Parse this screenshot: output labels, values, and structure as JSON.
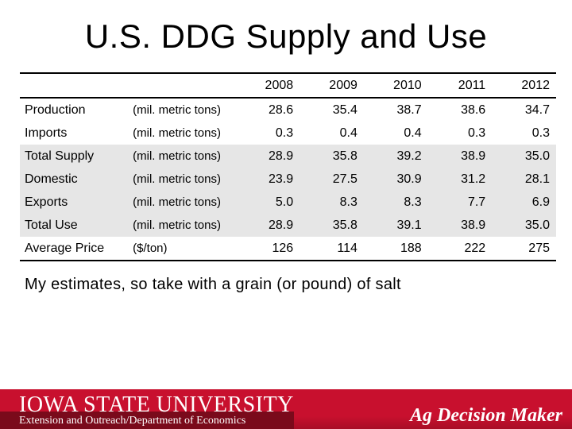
{
  "title": "U.S. DDG Supply and Use",
  "table": {
    "years": [
      "2008",
      "2009",
      "2010",
      "2011",
      "2012"
    ],
    "rows": [
      {
        "label": "Production",
        "unit": "(mil. metric tons)",
        "values": [
          "28.6",
          "35.4",
          "38.7",
          "38.6",
          "34.7"
        ]
      },
      {
        "label": "Imports",
        "unit": "(mil. metric tons)",
        "values": [
          "0.3",
          "0.4",
          "0.4",
          "0.3",
          "0.3"
        ]
      },
      {
        "label": "Total Supply",
        "unit": "(mil. metric tons)",
        "values": [
          "28.9",
          "35.8",
          "39.2",
          "38.9",
          "35.0"
        ]
      },
      {
        "label": "Domestic",
        "unit": "(mil. metric tons)",
        "values": [
          "23.9",
          "27.5",
          "30.9",
          "31.2",
          "28.1"
        ]
      },
      {
        "label": "Exports",
        "unit": "(mil. metric tons)",
        "values": [
          "5.0",
          "8.3",
          "8.3",
          "7.7",
          "6.9"
        ]
      },
      {
        "label": "Total Use",
        "unit": "(mil. metric tons)",
        "values": [
          "28.9",
          "35.8",
          "39.1",
          "38.9",
          "35.0"
        ]
      },
      {
        "label": "Average Price",
        "unit": "($/ton)",
        "values": [
          "126",
          "114",
          "188",
          "222",
          "275"
        ]
      }
    ]
  },
  "note": "My estimates, so take with a grain (or pound) of salt",
  "footer": {
    "university": "Iowa State University",
    "department": "Extension and Outreach/Department of Economics",
    "brand": "Ag Decision Maker"
  },
  "colors": {
    "footer_red": "#c8102e",
    "row_shade": "#e6e6e6"
  }
}
